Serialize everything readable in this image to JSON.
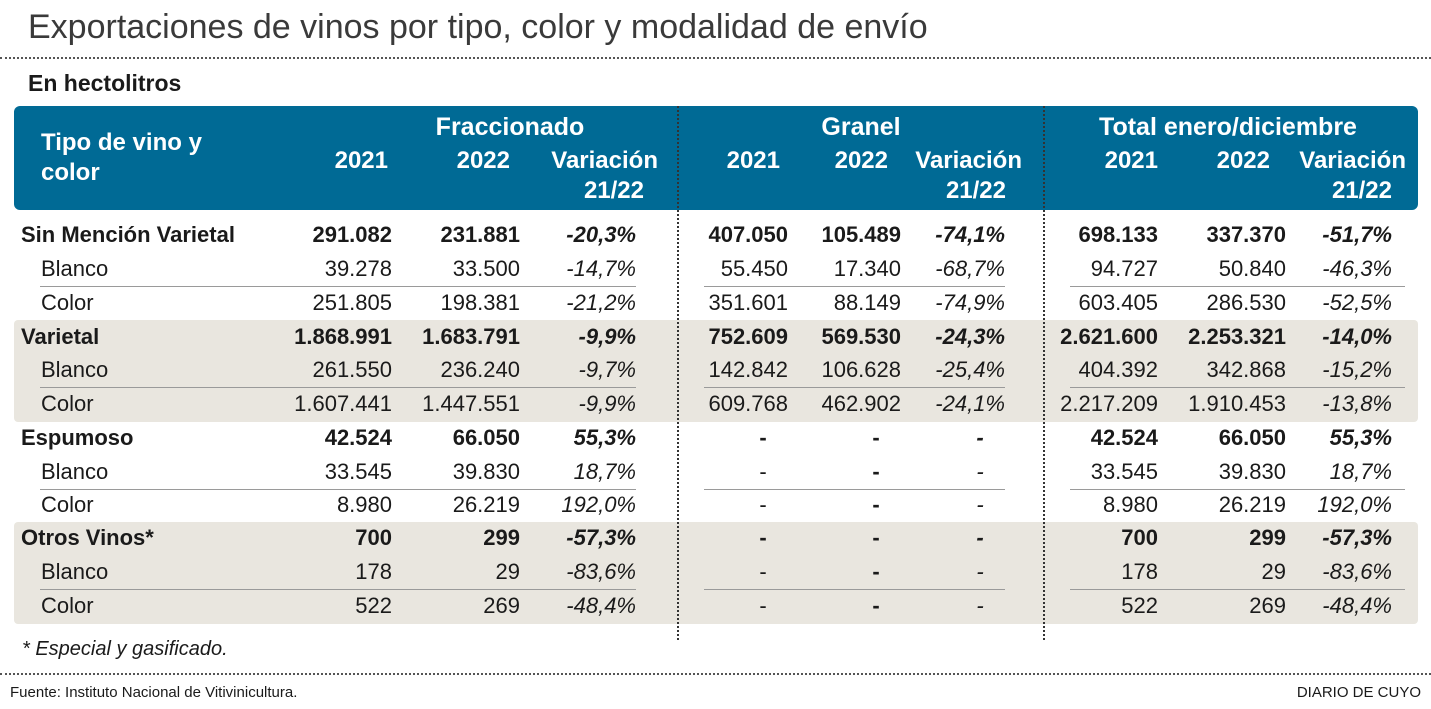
{
  "title": "Exportaciones de vinos por tipo, color y modalidad de envío",
  "subtitle": "En hectolitros",
  "header": {
    "first_col": [
      "Tipo de vino y",
      "color"
    ],
    "groups": [
      "Fraccionado",
      "Granel",
      "Total enero/diciembre"
    ],
    "sub": {
      "y2021": "2021",
      "y2022": "2022",
      "var1": "Variación",
      "var2": "21/22"
    }
  },
  "rows": [
    {
      "label": "Sin Mención Varietal",
      "bold": true,
      "cells": [
        "291.082",
        "231.881",
        "-20,3%",
        "407.050",
        "105.489",
        "-74,1%",
        "698.133",
        "337.370",
        "-51,7%"
      ]
    },
    {
      "label": "Blanco",
      "bold": false,
      "cells": [
        "39.278",
        "33.500",
        "-14,7%",
        "55.450",
        "17.340",
        "-68,7%",
        "94.727",
        "50.840",
        "-46,3%"
      ]
    },
    {
      "label": "Color",
      "bold": false,
      "cells": [
        "251.805",
        "198.381",
        "-21,2%",
        "351.601",
        "88.149",
        "-74,9%",
        "603.405",
        "286.530",
        "-52,5%"
      ]
    },
    {
      "label": "Varietal",
      "bold": true,
      "cells": [
        "1.868.991",
        "1.683.791",
        "-9,9%",
        "752.609",
        "569.530",
        "-24,3%",
        "2.621.600",
        "2.253.321",
        "-14,0%"
      ]
    },
    {
      "label": "Blanco",
      "bold": false,
      "cells": [
        "261.550",
        "236.240",
        "-9,7%",
        "142.842",
        "106.628",
        "-25,4%",
        "404.392",
        "342.868",
        "-15,2%"
      ]
    },
    {
      "label": "Color",
      "bold": false,
      "cells": [
        "1.607.441",
        "1.447.551",
        "-9,9%",
        "609.768",
        "462.902",
        "-24,1%",
        "2.217.209",
        "1.910.453",
        "-13,8%"
      ]
    },
    {
      "label": "Espumoso",
      "bold": true,
      "cells": [
        "42.524",
        "66.050",
        "55,3%",
        "-",
        "-",
        "-",
        "42.524",
        "66.050",
        "55,3%"
      ]
    },
    {
      "label": "Blanco",
      "bold": false,
      "cells": [
        "33.545",
        "39.830",
        "18,7%",
        "-",
        "-",
        "-",
        "33.545",
        "39.830",
        "18,7%"
      ]
    },
    {
      "label": "Color",
      "bold": false,
      "cells": [
        "8.980",
        "26.219",
        "192,0%",
        "-",
        "-",
        "-",
        "8.980",
        "26.219",
        "192,0%"
      ]
    },
    {
      "label": "Otros  Vinos*",
      "bold": true,
      "cells": [
        "700",
        "299",
        "-57,3%",
        "-",
        "-",
        "-",
        "700",
        "299",
        "-57,3%"
      ]
    },
    {
      "label": "Blanco",
      "bold": false,
      "cells": [
        "178",
        "29",
        "-83,6%",
        "-",
        "-",
        "-",
        "178",
        "29",
        "-83,6%"
      ]
    },
    {
      "label": "Color",
      "bold": false,
      "cells": [
        "522",
        "269",
        "-48,4%",
        "-",
        "-",
        "-",
        "522",
        "269",
        "-48,4%"
      ]
    }
  ],
  "footnote": "* Especial y gasificado.",
  "source": "Fuente: Instituto Nacional de Vitivinicultura.",
  "brand": "DIARIO DE CUYO",
  "colors": {
    "header": "#006a95",
    "band": "#e9e6df"
  },
  "chart_data": {
    "type": "table",
    "title": "Exportaciones de vinos por tipo, color y modalidad de envío",
    "subtitle": "En hectolitros",
    "columns": [
      "Tipo de vino y color",
      "Fraccionado 2021",
      "Fraccionado 2022",
      "Fraccionado Variación 21/22",
      "Granel 2021",
      "Granel 2022",
      "Granel Variación 21/22",
      "Total enero/diciembre 2021",
      "Total enero/diciembre 2022",
      "Total enero/diciembre Variación 21/22"
    ]
  }
}
